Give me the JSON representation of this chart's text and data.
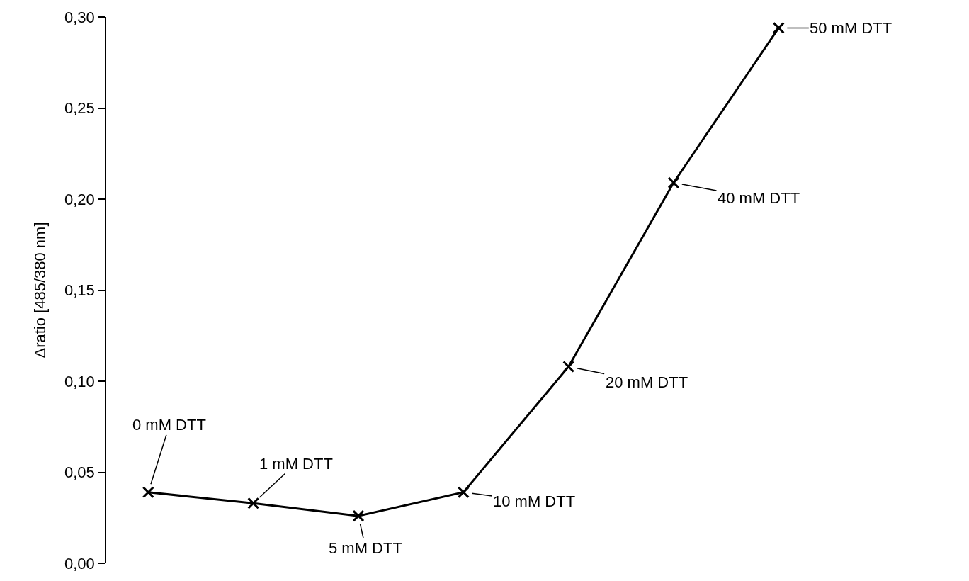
{
  "chart_data": {
    "type": "line",
    "ylabel": "Δratio [485/380 nm]",
    "categories": [
      null,
      null,
      null,
      null,
      null,
      null,
      null
    ],
    "series": [
      {
        "color": "#000000",
        "values": [
          0.039,
          0.033,
          0.026,
          0.039,
          0.108,
          0.209,
          0.294
        ]
      }
    ],
    "ylim": [
      0,
      0.3
    ],
    "yticks": [
      {
        "value": 0,
        "label": "0,00"
      },
      {
        "value": 0.05,
        "label": "0,05"
      },
      {
        "value": 0.1,
        "label": "0,10"
      },
      {
        "value": 0.15,
        "label": "0,15"
      },
      {
        "value": 0.2,
        "label": "0,20"
      },
      {
        "value": 0.25,
        "label": "0,25"
      },
      {
        "value": 0.3,
        "label": "0,30"
      }
    ],
    "tick_labels": "y",
    "marker": "cross",
    "line_style": "solid",
    "annotations": [
      "0 mM DTT",
      "1 mM DTT",
      "5 mM DTT",
      "10 mM DTT",
      "20 mM DTT",
      "40 mM DTT",
      "50 mM DTT"
    ]
  }
}
